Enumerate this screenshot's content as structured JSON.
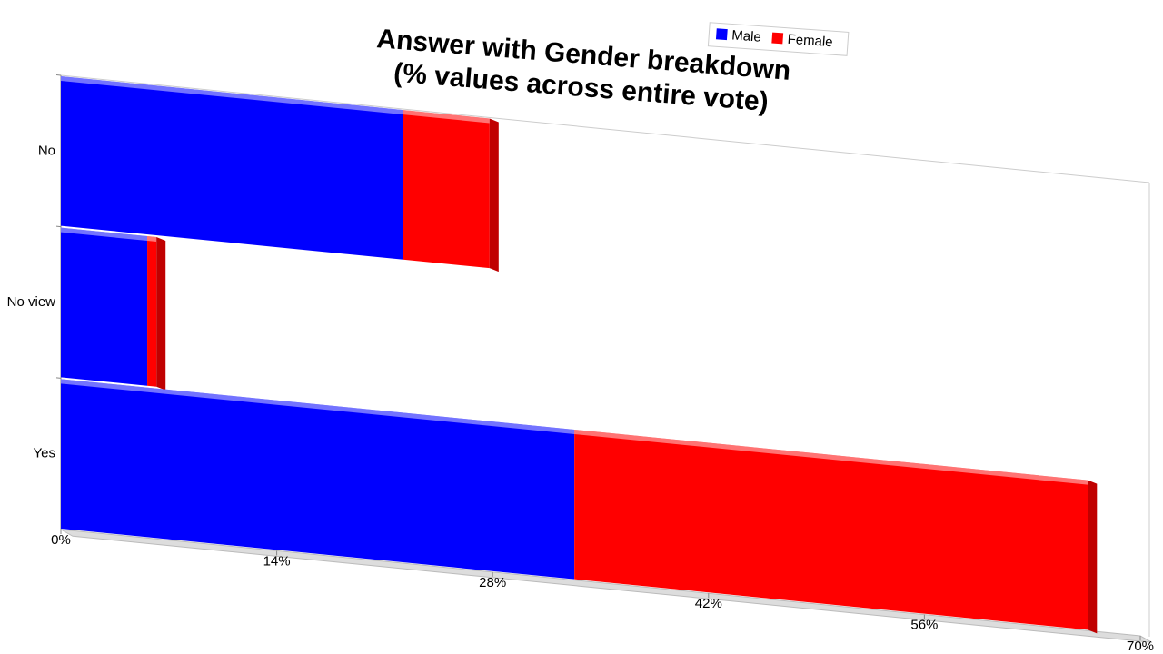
{
  "chart_data": {
    "type": "bar",
    "orientation": "horizontal",
    "stacked": true,
    "title": [
      "Answer with Gender breakdown",
      "(% values across entire vote)"
    ],
    "categories": [
      "No",
      "No view",
      "Yes"
    ],
    "series": [
      {
        "name": "Male",
        "color": "#0000ff",
        "values": [
          22.2,
          5.6,
          33.3
        ]
      },
      {
        "name": "Female",
        "color": "#ff0000",
        "values": [
          5.6,
          0.6,
          33.3
        ]
      }
    ],
    "xlim": [
      0,
      70
    ],
    "xticks": [
      {
        "value": 0,
        "label": "0%"
      },
      {
        "value": 14,
        "label": "14%"
      },
      {
        "value": 28,
        "label": "28%"
      },
      {
        "value": 42,
        "label": "42%"
      },
      {
        "value": 56,
        "label": "56%"
      },
      {
        "value": 70,
        "label": "70%"
      }
    ],
    "legend": "top"
  }
}
